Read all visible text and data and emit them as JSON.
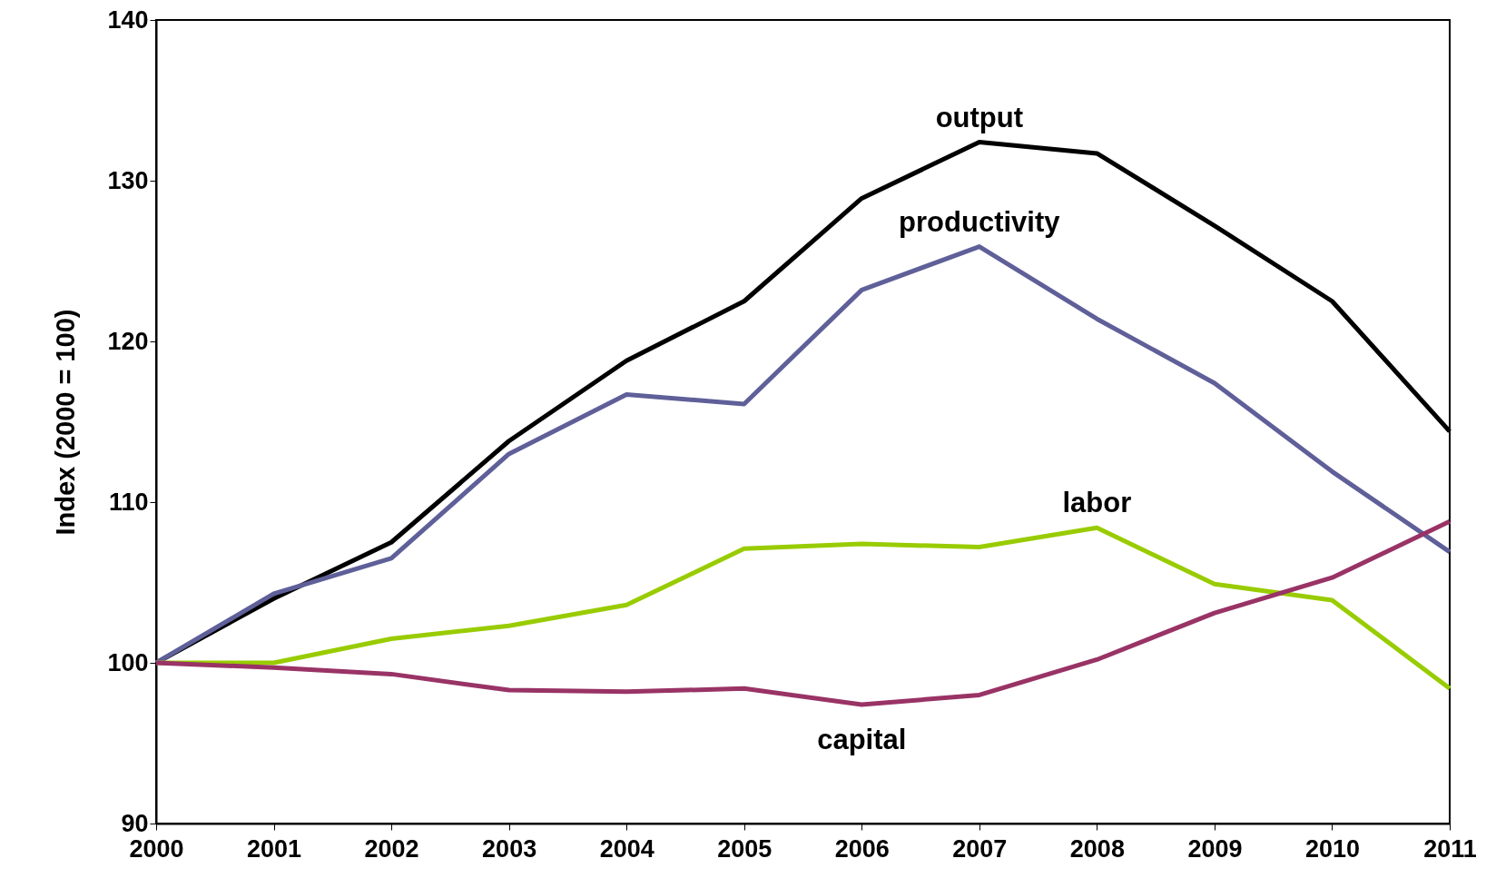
{
  "chart_data": {
    "type": "line",
    "ylabel": "Index (2000 = 100)",
    "x": [
      2000,
      2001,
      2002,
      2003,
      2004,
      2005,
      2006,
      2007,
      2008,
      2009,
      2010,
      2011
    ],
    "xlim": [
      2000,
      2011
    ],
    "xticks": [
      2000,
      2001,
      2002,
      2003,
      2004,
      2005,
      2006,
      2007,
      2008,
      2009,
      2010,
      2011
    ],
    "ylim": [
      90,
      140
    ],
    "yticks": [
      90,
      100,
      110,
      120,
      130,
      140
    ],
    "grid": false,
    "legend": false,
    "marker": "none",
    "line_style": "solid",
    "series": [
      {
        "name": "output",
        "color": "#000000",
        "values": [
          100,
          104.0,
          107.5,
          113.8,
          118.8,
          122.5,
          128.9,
          132.4,
          131.7,
          127.2,
          122.5,
          114.4
        ]
      },
      {
        "name": "productivity",
        "color": "#5f5f99",
        "values": [
          100,
          104.3,
          106.5,
          113.0,
          116.7,
          116.1,
          123.2,
          125.9,
          121.4,
          117.4,
          111.9,
          106.9
        ]
      },
      {
        "name": "labor",
        "color": "#99cc00",
        "values": [
          100,
          100,
          101.5,
          102.3,
          103.6,
          107.1,
          107.4,
          107.2,
          108.4,
          104.9,
          103.9,
          98.4
        ]
      },
      {
        "name": "capital",
        "color": "#993366",
        "values": [
          100,
          99.7,
          99.3,
          98.3,
          98.2,
          98.4,
          97.4,
          98.0,
          100.2,
          103.1,
          105.3,
          108.8
        ]
      }
    ]
  }
}
